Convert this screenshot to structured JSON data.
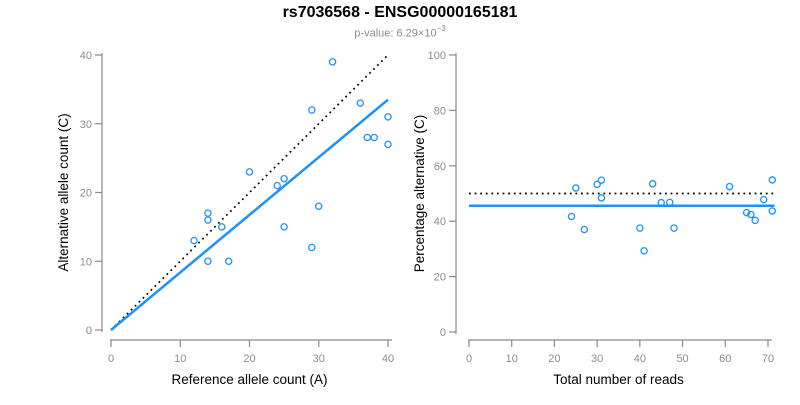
{
  "figure": {
    "title": "rs7036568 - ENSG00000165181",
    "subtitle_prefix": "p-value: 6.29×10",
    "subtitle_exponent": "−3"
  },
  "colors": {
    "accent_blue": "#1E90FF",
    "axis_gray": "#8a8a8a",
    "tick_label_gray": "#8c8c8c",
    "reference_line_black": "#000000"
  },
  "chart_data": [
    {
      "type": "scatter",
      "panel": "left",
      "xlabel": "Reference allele count (A)",
      "ylabel": "Alternative allele count (C)",
      "xlim": [
        0,
        40
      ],
      "ylim": [
        0,
        40
      ],
      "xticks": [
        0,
        10,
        20,
        30,
        40
      ],
      "yticks": [
        0,
        10,
        20,
        30,
        40
      ],
      "points": [
        [
          12,
          13
        ],
        [
          14,
          10
        ],
        [
          14,
          16
        ],
        [
          14,
          17
        ],
        [
          16,
          15
        ],
        [
          17,
          10
        ],
        [
          20,
          23
        ],
        [
          24,
          21
        ],
        [
          25,
          15
        ],
        [
          25,
          22
        ],
        [
          29,
          12
        ],
        [
          29,
          32
        ],
        [
          30,
          18
        ],
        [
          32,
          39
        ],
        [
          36,
          33
        ],
        [
          37,
          28
        ],
        [
          38,
          28
        ],
        [
          40,
          27
        ],
        [
          40,
          31
        ]
      ],
      "lines": [
        {
          "name": "identity",
          "style": "dotted",
          "color": "#000000",
          "x": [
            0,
            40
          ],
          "y": [
            0,
            40
          ]
        },
        {
          "name": "fit",
          "style": "solid",
          "color": "#1E90FF",
          "x": [
            0,
            40
          ],
          "y": [
            0,
            33.5
          ]
        }
      ]
    },
    {
      "type": "scatter",
      "panel": "right",
      "xlabel": "Total number of reads",
      "ylabel": "Percentage alternative (C)",
      "xlim": [
        0,
        70
      ],
      "ylim": [
        0,
        100
      ],
      "xticks": [
        0,
        10,
        20,
        30,
        40,
        50,
        60,
        70
      ],
      "yticks": [
        0,
        20,
        40,
        60,
        80,
        100
      ],
      "points": [
        [
          24,
          41.7
        ],
        [
          25,
          52.0
        ],
        [
          27,
          37.0
        ],
        [
          30,
          53.3
        ],
        [
          31,
          54.8
        ],
        [
          31,
          48.4
        ],
        [
          40,
          37.5
        ],
        [
          41,
          29.3
        ],
        [
          43,
          53.5
        ],
        [
          45,
          46.7
        ],
        [
          47,
          46.8
        ],
        [
          48,
          37.5
        ],
        [
          61,
          52.5
        ],
        [
          65,
          43.1
        ],
        [
          66,
          42.4
        ],
        [
          67,
          40.3
        ],
        [
          69,
          47.8
        ],
        [
          71,
          54.9
        ],
        [
          71,
          43.7
        ]
      ],
      "lines": [
        {
          "name": "expected",
          "style": "dotted",
          "color": "#000000",
          "x": [
            0,
            71.5
          ],
          "y": [
            50,
            50
          ]
        },
        {
          "name": "fit",
          "style": "solid",
          "color": "#1E90FF",
          "x": [
            0,
            71.5
          ],
          "y": [
            45.6,
            45.6
          ]
        }
      ]
    }
  ]
}
